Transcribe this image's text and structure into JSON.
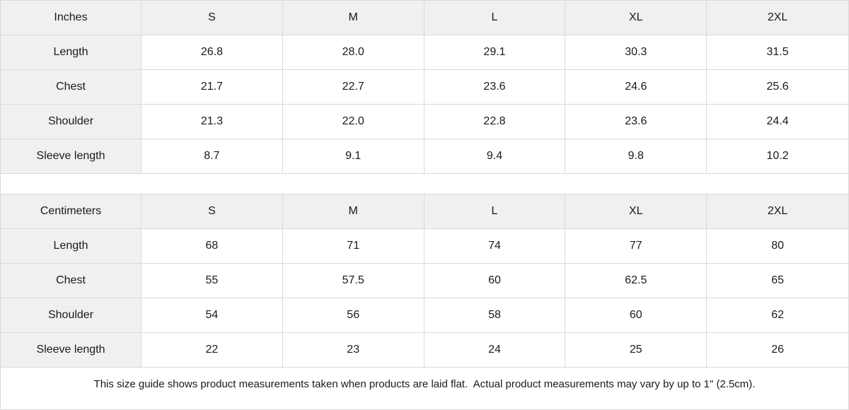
{
  "colors": {
    "header_bg": "#f0f0f0",
    "cell_bg": "#ffffff",
    "border": "#d9d9d9",
    "text": "#1a1a1a"
  },
  "tables": [
    {
      "unit_label": "Inches",
      "size_headers": [
        "S",
        "M",
        "L",
        "XL",
        "2XL"
      ],
      "rows": [
        {
          "label": "Length",
          "values": [
            "26.8",
            "28.0",
            "29.1",
            "30.3",
            "31.5"
          ]
        },
        {
          "label": "Chest",
          "values": [
            "21.7",
            "22.7",
            "23.6",
            "24.6",
            "25.6"
          ]
        },
        {
          "label": "Shoulder",
          "values": [
            "21.3",
            "22.0",
            "22.8",
            "23.6",
            "24.4"
          ]
        },
        {
          "label": "Sleeve length",
          "values": [
            "8.7",
            "9.1",
            "9.4",
            "9.8",
            "10.2"
          ]
        }
      ]
    },
    {
      "unit_label": "Centimeters",
      "size_headers": [
        "S",
        "M",
        "L",
        "XL",
        "2XL"
      ],
      "rows": [
        {
          "label": "Length",
          "values": [
            "68",
            "71",
            "74",
            "77",
            "80"
          ]
        },
        {
          "label": "Chest",
          "values": [
            "55",
            "57.5",
            "60",
            "62.5",
            "65"
          ]
        },
        {
          "label": "Shoulder",
          "values": [
            "54",
            "56",
            "58",
            "60",
            "62"
          ]
        },
        {
          "label": "Sleeve length",
          "values": [
            "22",
            "23",
            "24",
            "25",
            "26"
          ]
        }
      ]
    }
  ],
  "footer": {
    "note": "This size guide shows product measurements taken when products are laid flat.  Actual product measurements may vary by up to 1\" (2.5cm)."
  }
}
